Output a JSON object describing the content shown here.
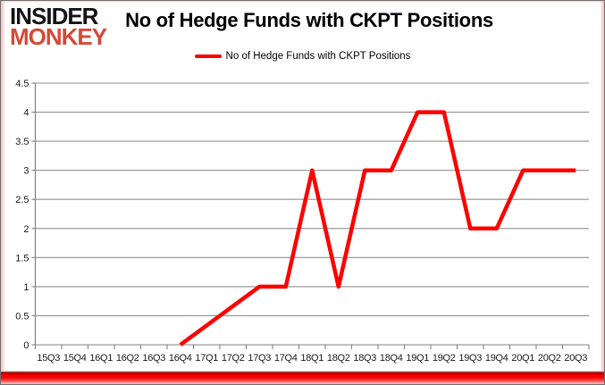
{
  "logo": {
    "line1": "INSIDER",
    "line2": "MONKEY"
  },
  "header": {
    "title": "No of Hedge Funds with CKPT Positions"
  },
  "legend": {
    "label": "No of Hedge Funds with CKPT Positions",
    "swatch_color": "#ff0000"
  },
  "colors": {
    "line": "#ff0000",
    "grid": "#909090",
    "axis": "#808080",
    "tick_text": "#1a1a1a",
    "logo_black": "#141414",
    "logo_red": "#d44a38",
    "bottom_bar": "#ff0000",
    "frame_border": "#6f6f6f",
    "frame_glow": "#ff9696"
  },
  "chart_data": {
    "type": "line",
    "title": "No of Hedge Funds with CKPT Positions",
    "categories": [
      "15Q3",
      "15Q4",
      "16Q1",
      "16Q2",
      "16Q3",
      "16Q4",
      "17Q1",
      "17Q2",
      "17Q3",
      "17Q4",
      "18Q1",
      "18Q2",
      "18Q3",
      "18Q4",
      "19Q1",
      "19Q2",
      "19Q3",
      "19Q4",
      "20Q1",
      "20Q2",
      "20Q3"
    ],
    "series": [
      {
        "name": "No of Hedge Funds with CKPT Positions",
        "color": "#ff0000",
        "values": [
          null,
          null,
          null,
          null,
          null,
          0,
          null,
          null,
          1,
          1,
          3,
          1,
          3,
          3,
          4,
          4,
          2,
          2,
          3,
          3,
          3
        ]
      }
    ],
    "xlabel": "",
    "ylabel": "",
    "ylim": [
      0,
      4.5
    ],
    "ytick_step": 0.5,
    "grid": true,
    "legend_position": "top",
    "connect_gaps": true
  }
}
